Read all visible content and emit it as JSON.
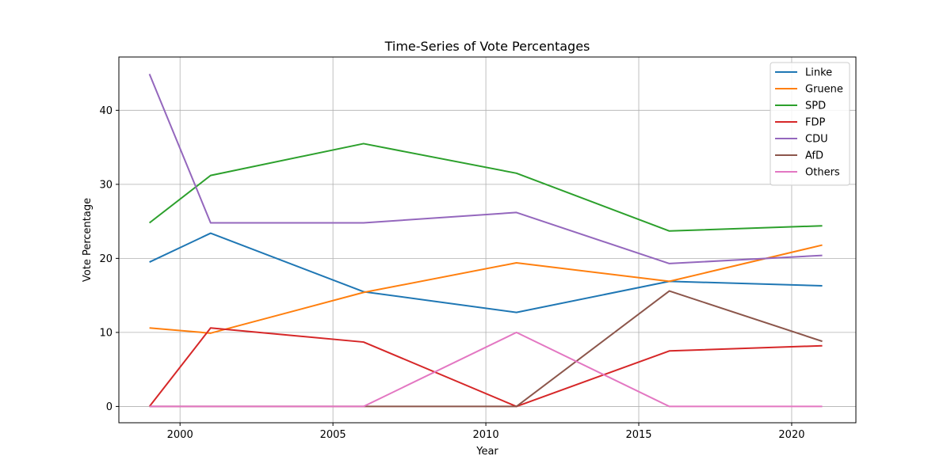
{
  "chart_data": {
    "type": "line",
    "title": "Time-Series of Vote Percentages",
    "xlabel": "Year",
    "ylabel": "Vote Percentage",
    "xlim": [
      1998,
      2022.1
    ],
    "ylim": [
      -2.2,
      47.2
    ],
    "x_ticks": [
      2000,
      2005,
      2010,
      2015,
      2020
    ],
    "y_ticks": [
      0,
      10,
      20,
      30,
      40
    ],
    "grid": true,
    "legend_position": "top-right",
    "x": [
      1999,
      2001,
      2006,
      2011,
      2016,
      2021
    ],
    "series": [
      {
        "name": "Linke",
        "color": "#1f77b4",
        "values": [
          19.5,
          23.4,
          15.5,
          12.7,
          16.9,
          16.3
        ]
      },
      {
        "name": "Gruene",
        "color": "#ff7f0e",
        "values": [
          10.6,
          9.9,
          15.4,
          19.4,
          16.9,
          21.8
        ]
      },
      {
        "name": "SPD",
        "color": "#2ca02c",
        "values": [
          24.8,
          31.2,
          35.5,
          31.5,
          23.7,
          24.4
        ]
      },
      {
        "name": "FDP",
        "color": "#d62728",
        "values": [
          0.0,
          10.6,
          8.7,
          0.0,
          7.5,
          8.2
        ]
      },
      {
        "name": "CDU",
        "color": "#9467bd",
        "values": [
          44.9,
          24.8,
          24.8,
          26.2,
          19.3,
          20.4
        ]
      },
      {
        "name": "AfD",
        "color": "#8c564b",
        "values": [
          0.0,
          0.0,
          0.0,
          0.0,
          15.6,
          8.8
        ]
      },
      {
        "name": "Others",
        "color": "#e377c2",
        "values": [
          0.0,
          0.0,
          0.0,
          10.0,
          0.0,
          0.0
        ]
      }
    ]
  }
}
